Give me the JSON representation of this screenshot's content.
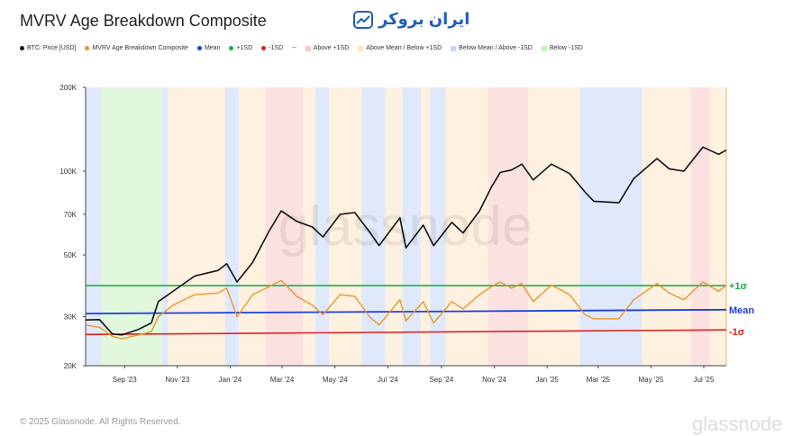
{
  "header": {
    "title": "MVRV Age Breakdown Composite",
    "brand": "ایران بروکر"
  },
  "legend": [
    {
      "label": "BTC: Price [USD]",
      "color": "#111111",
      "kind": "dot"
    },
    {
      "label": "MVRV Age Breakdown Composite",
      "color": "#e8962a",
      "kind": "dot"
    },
    {
      "label": "Mean",
      "color": "#1f3fd6",
      "kind": "dot"
    },
    {
      "label": "+1SD",
      "color": "#19b04b",
      "kind": "dot"
    },
    {
      "label": "-1SD",
      "color": "#e02020",
      "kind": "dot"
    },
    {
      "label": "--",
      "color": "#888888",
      "kind": "text"
    },
    {
      "label": "Above +1SD",
      "color": "#f9c9c9",
      "kind": "sq"
    },
    {
      "label": "Above Mean / Below +1SD",
      "color": "#fde5c6",
      "kind": "sq"
    },
    {
      "label": "Below Mean / Above -1SD",
      "color": "#c7d7f7",
      "kind": "sq"
    },
    {
      "label": "Below -1SD",
      "color": "#c8f2c0",
      "kind": "sq"
    }
  ],
  "colors": {
    "price": "#111111",
    "composite": "#e8962a",
    "mean": "#1f3fd6",
    "plus_sd": "#19b04b",
    "minus_sd": "#e02020",
    "zone_above_plus": "#f9c9c9",
    "zone_above_mean": "#fde5c6",
    "zone_below_mean": "#c7d7f7",
    "zone_below_minus": "#c8f2c0"
  },
  "chart_data": {
    "type": "line",
    "title": "MVRV Age Breakdown Composite",
    "y_scale": "log",
    "y_ticks": [
      20000,
      30000,
      50000,
      70000,
      100000,
      200000
    ],
    "y_tick_labels": [
      "20K",
      "30K",
      "50K",
      "70K",
      "100K",
      "200K"
    ],
    "ylim": [
      20000,
      200000
    ],
    "x_ticks": [
      "2023-09-15",
      "2023-11-15",
      "2024-01-15",
      "2024-03-15",
      "2024-05-15",
      "2024-07-15",
      "2024-09-15",
      "2024-11-15",
      "2025-01-15",
      "2025-03-15",
      "2025-05-15",
      "2025-07-15"
    ],
    "x_tick_labels": [
      "Sep '23",
      "Nov '23",
      "Jan '24",
      "Mar '24",
      "May '24",
      "Jul '24",
      "Sep '24",
      "Nov '24",
      "Jan '25",
      "Mar '25",
      "May '25",
      "Jul '25"
    ],
    "xlim": [
      "2023-08-01",
      "2025-08-10"
    ],
    "grid": false,
    "band_labels": {
      "plus": "+1σ",
      "mean": "Mean",
      "minus": "-1σ"
    },
    "series": [
      {
        "name": "BTC: Price [USD]",
        "x": [
          "2023-08-01",
          "2023-08-17",
          "2023-09-01",
          "2023-09-12",
          "2023-10-01",
          "2023-10-16",
          "2023-10-24",
          "2023-11-10",
          "2023-12-05",
          "2024-01-01",
          "2024-01-11",
          "2024-01-23",
          "2024-02-10",
          "2024-02-29",
          "2024-03-14",
          "2024-04-01",
          "2024-04-19",
          "2024-05-01",
          "2024-05-21",
          "2024-06-07",
          "2024-06-24",
          "2024-07-05",
          "2024-07-29",
          "2024-08-05",
          "2024-08-25",
          "2024-09-06",
          "2024-09-27",
          "2024-10-10",
          "2024-10-29",
          "2024-11-12",
          "2024-11-22",
          "2024-12-05",
          "2024-12-17",
          "2024-12-30",
          "2025-01-20",
          "2025-02-10",
          "2025-02-28",
          "2025-03-10",
          "2025-04-08",
          "2025-04-25",
          "2025-05-22",
          "2025-06-05",
          "2025-06-22",
          "2025-07-14",
          "2025-08-01",
          "2025-08-10"
        ],
        "values": [
          29200,
          29300,
          26000,
          25800,
          27000,
          28500,
          34000,
          37000,
          42000,
          44000,
          46500,
          40000,
          47000,
          61000,
          72000,
          66000,
          63000,
          58000,
          70000,
          71000,
          60500,
          54000,
          68000,
          53000,
          64000,
          54000,
          65500,
          60000,
          72000,
          88000,
          99000,
          101000,
          106000,
          93000,
          106000,
          98000,
          84000,
          78000,
          77000,
          94000,
          111000,
          102000,
          100000,
          122000,
          115000,
          119000
        ]
      },
      {
        "name": "MVRV Age Breakdown Composite",
        "x": [
          "2023-08-01",
          "2023-08-17",
          "2023-09-01",
          "2023-09-12",
          "2023-10-01",
          "2023-10-16",
          "2023-10-24",
          "2023-11-10",
          "2023-12-05",
          "2024-01-01",
          "2024-01-11",
          "2024-01-23",
          "2024-02-10",
          "2024-02-29",
          "2024-03-14",
          "2024-04-01",
          "2024-04-19",
          "2024-05-01",
          "2024-05-21",
          "2024-06-07",
          "2024-06-24",
          "2024-07-05",
          "2024-07-29",
          "2024-08-05",
          "2024-08-25",
          "2024-09-06",
          "2024-09-27",
          "2024-10-10",
          "2024-10-29",
          "2024-11-12",
          "2024-11-22",
          "2024-12-05",
          "2024-12-17",
          "2024-12-30",
          "2025-01-20",
          "2025-02-10",
          "2025-02-28",
          "2025-03-10",
          "2025-04-08",
          "2025-04-25",
          "2025-05-22",
          "2025-06-05",
          "2025-06-22",
          "2025-07-14",
          "2025-08-01",
          "2025-08-10"
        ],
        "values": [
          28000,
          27500,
          25500,
          25000,
          25800,
          26500,
          30000,
          33000,
          36000,
          36500,
          38000,
          30000,
          36000,
          38500,
          40500,
          35500,
          33000,
          30500,
          36000,
          35500,
          30000,
          28000,
          34500,
          29000,
          34000,
          28500,
          34000,
          32000,
          36000,
          38500,
          40000,
          38000,
          39500,
          34000,
          39000,
          36000,
          30500,
          29500,
          29500,
          34500,
          39500,
          36500,
          34500,
          40000,
          37000,
          39000
        ]
      },
      {
        "name": "Mean",
        "x": [
          "2023-08-01",
          "2025-08-10"
        ],
        "values": [
          30800,
          31800
        ]
      },
      {
        "name": "+1SD",
        "x": [
          "2023-08-01",
          "2025-08-10"
        ],
        "values": [
          38800,
          38800
        ]
      },
      {
        "name": "-1SD",
        "x": [
          "2023-08-01",
          "2025-08-10"
        ],
        "values": [
          25900,
          26900
        ]
      }
    ],
    "zones": [
      {
        "start": "2023-08-01",
        "end": "2023-08-20",
        "zone": "below_mean"
      },
      {
        "start": "2023-08-20",
        "end": "2023-10-28",
        "zone": "below_minus"
      },
      {
        "start": "2023-10-28",
        "end": "2023-11-04",
        "zone": "below_mean"
      },
      {
        "start": "2023-11-04",
        "end": "2024-01-09",
        "zone": "above_mean"
      },
      {
        "start": "2024-01-09",
        "end": "2024-01-25",
        "zone": "below_mean"
      },
      {
        "start": "2024-01-25",
        "end": "2024-02-25",
        "zone": "above_mean"
      },
      {
        "start": "2024-02-25",
        "end": "2024-04-08",
        "zone": "above_plus"
      },
      {
        "start": "2024-04-08",
        "end": "2024-04-22",
        "zone": "above_mean"
      },
      {
        "start": "2024-04-22",
        "end": "2024-05-08",
        "zone": "below_mean"
      },
      {
        "start": "2024-05-08",
        "end": "2024-06-15",
        "zone": "above_mean"
      },
      {
        "start": "2024-06-15",
        "end": "2024-07-12",
        "zone": "below_mean"
      },
      {
        "start": "2024-07-12",
        "end": "2024-08-01",
        "zone": "above_mean"
      },
      {
        "start": "2024-08-01",
        "end": "2024-08-22",
        "zone": "below_mean"
      },
      {
        "start": "2024-08-22",
        "end": "2024-09-02",
        "zone": "above_mean"
      },
      {
        "start": "2024-09-02",
        "end": "2024-09-20",
        "zone": "below_mean"
      },
      {
        "start": "2024-09-20",
        "end": "2024-11-08",
        "zone": "above_mean"
      },
      {
        "start": "2024-11-08",
        "end": "2024-12-24",
        "zone": "above_plus"
      },
      {
        "start": "2024-12-24",
        "end": "2025-02-22",
        "zone": "above_mean"
      },
      {
        "start": "2025-02-22",
        "end": "2025-05-05",
        "zone": "below_mean"
      },
      {
        "start": "2025-05-05",
        "end": "2025-06-30",
        "zone": "above_mean"
      },
      {
        "start": "2025-06-30",
        "end": "2025-07-22",
        "zone": "above_plus"
      },
      {
        "start": "2025-07-22",
        "end": "2025-08-10",
        "zone": "above_mean"
      }
    ]
  },
  "watermark": "glassnode",
  "footer": {
    "copyright": "© 2025 Glassnode. All Rights Reserved.",
    "logo": "glassnode"
  }
}
